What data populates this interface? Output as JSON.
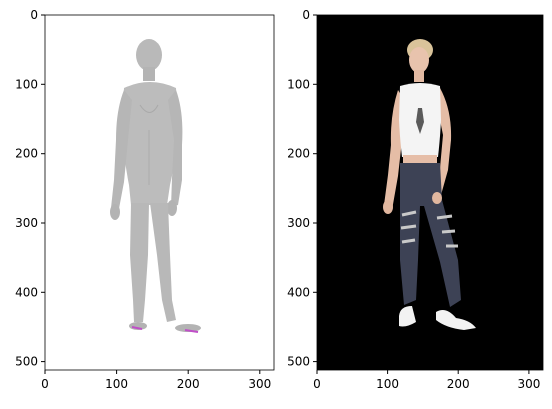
{
  "figure": {
    "panels": [
      {
        "name": "left",
        "description_kind": "grey 3D body mesh render",
        "background": "#ffffff",
        "mesh_color": "#b9b9b9",
        "foot_accent_color": "#c04fc8",
        "xlim": [
          0,
          320
        ],
        "ylim": [
          512,
          0
        ],
        "x_ticks": [
          "0",
          "100",
          "200",
          "300"
        ],
        "y_ticks": [
          "0",
          "100",
          "200",
          "300",
          "400",
          "500"
        ]
      },
      {
        "name": "right",
        "description_kind": "segmented photo of a standing woman",
        "background": "#000000",
        "xlim": [
          0,
          320
        ],
        "ylim": [
          512,
          0
        ],
        "x_ticks": [
          "0",
          "100",
          "200",
          "300"
        ],
        "y_ticks": [
          "0",
          "100",
          "200",
          "300",
          "400",
          "500"
        ],
        "colors": {
          "skin": "#e8c3ad",
          "hair": "#d9c39a",
          "top": "#f4f4f4",
          "jeans": "#3d4255",
          "sneakers": "#f2f2f2"
        }
      }
    ]
  }
}
